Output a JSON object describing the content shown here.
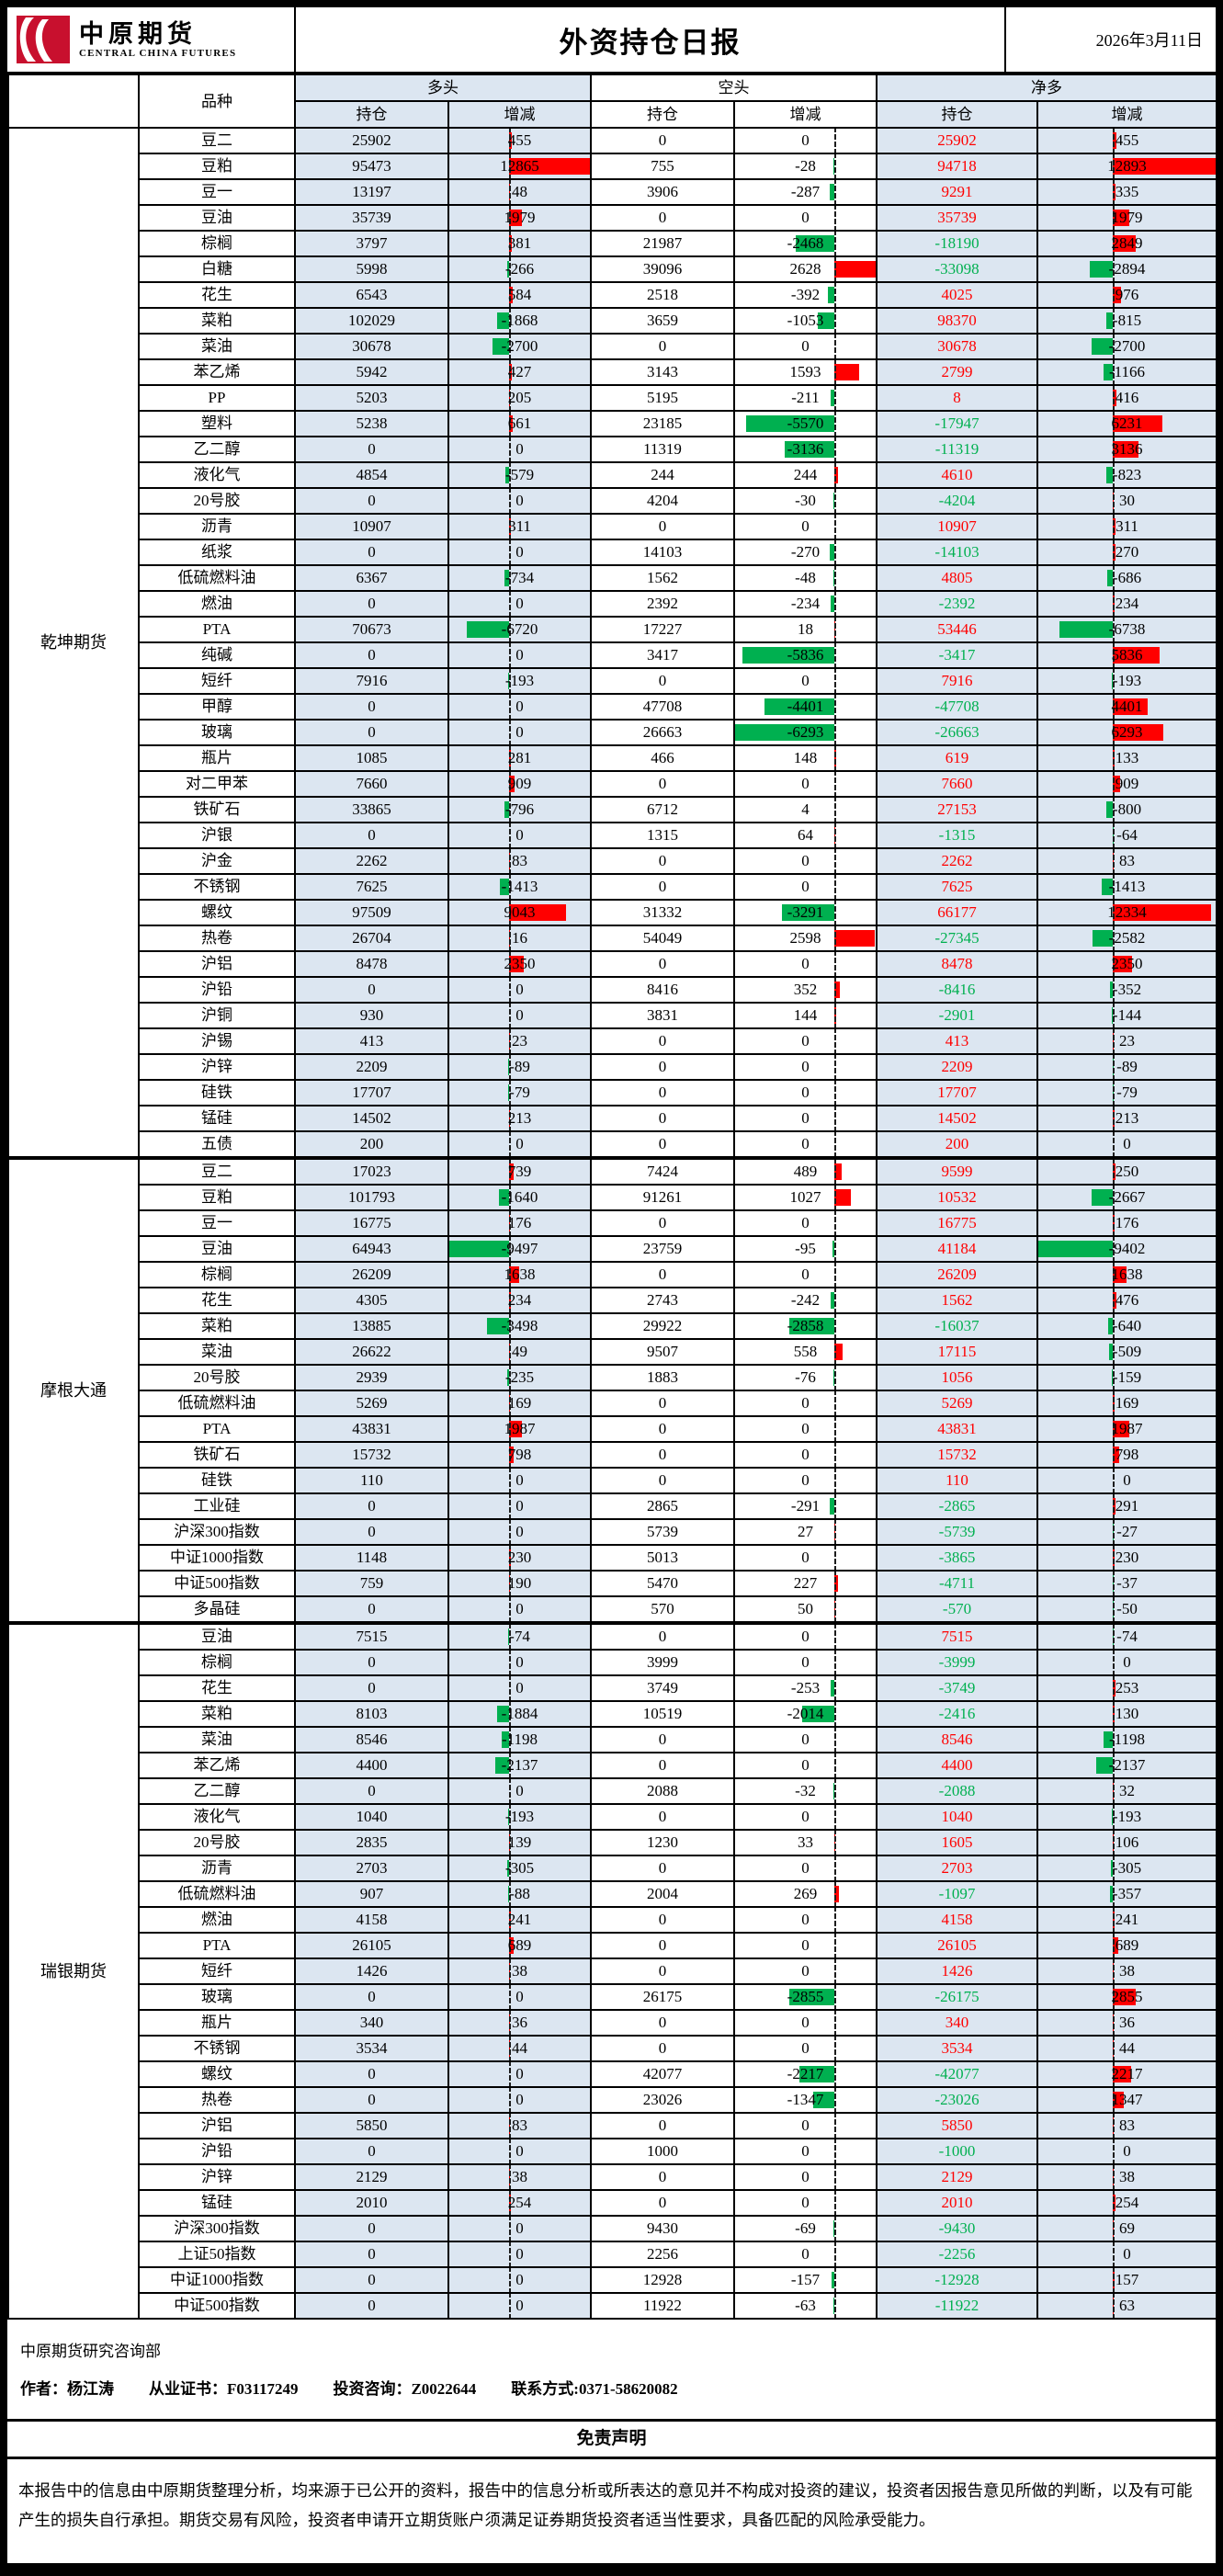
{
  "header": {
    "logo": {
      "brand_cn": "中原期货",
      "brand_en": "CENTRAL CHINA FUTURES"
    },
    "title": "外资持仓日报",
    "date": "2026年3月11日"
  },
  "colors": {
    "band_blue": "#dce6f1",
    "positive_red": "#ff0000",
    "negative_green": "#00b050",
    "logo_red": "#c8102e"
  },
  "table": {
    "col_headers": {
      "variety": "品种",
      "long": "多头",
      "short": "空头",
      "net": "净多",
      "position": "持仓",
      "change": "增减"
    },
    "value_columns": [
      "long_position",
      "long_change",
      "short_position",
      "short_change",
      "net_position",
      "net_change"
    ],
    "sections": [
      {
        "broker": "乾坤期货",
        "rows": [
          {
            "name": "豆二",
            "values": [
              25902,
              455,
              0,
              0,
              25902,
              455
            ]
          },
          {
            "name": "豆粕",
            "values": [
              95473,
              12865,
              755,
              -28,
              94718,
              12893
            ]
          },
          {
            "name": "豆一",
            "values": [
              13197,
              48,
              3906,
              -287,
              9291,
              335
            ]
          },
          {
            "name": "豆油",
            "values": [
              35739,
              1979,
              0,
              0,
              35739,
              1979
            ]
          },
          {
            "name": "棕榈",
            "values": [
              3797,
              381,
              21987,
              -2468,
              -18190,
              2849
            ]
          },
          {
            "name": "白糖",
            "values": [
              5998,
              -266,
              39096,
              2628,
              -33098,
              -2894
            ]
          },
          {
            "name": "花生",
            "values": [
              6543,
              584,
              2518,
              -392,
              4025,
              976
            ]
          },
          {
            "name": "菜粕",
            "values": [
              102029,
              -1868,
              3659,
              -1053,
              98370,
              -815
            ]
          },
          {
            "name": "菜油",
            "values": [
              30678,
              -2700,
              0,
              0,
              30678,
              -2700
            ]
          },
          {
            "name": "苯乙烯",
            "values": [
              5942,
              427,
              3143,
              1593,
              2799,
              -1166
            ]
          },
          {
            "name": "PP",
            "values": [
              5203,
              205,
              5195,
              -211,
              8,
              416
            ]
          },
          {
            "name": "塑料",
            "values": [
              5238,
              661,
              23185,
              -5570,
              -17947,
              6231
            ]
          },
          {
            "name": "乙二醇",
            "values": [
              0,
              0,
              11319,
              -3136,
              -11319,
              3136
            ]
          },
          {
            "name": "液化气",
            "values": [
              4854,
              -579,
              244,
              244,
              4610,
              -823
            ]
          },
          {
            "name": "20号胶",
            "values": [
              0,
              0,
              4204,
              -30,
              -4204,
              30
            ]
          },
          {
            "name": "沥青",
            "values": [
              10907,
              311,
              0,
              0,
              10907,
              311
            ]
          },
          {
            "name": "纸浆",
            "values": [
              0,
              0,
              14103,
              -270,
              -14103,
              270
            ]
          },
          {
            "name": "低硫燃料油",
            "values": [
              6367,
              -734,
              1562,
              -48,
              4805,
              -686
            ]
          },
          {
            "name": "燃油",
            "values": [
              0,
              0,
              2392,
              -234,
              -2392,
              234
            ]
          },
          {
            "name": "PTA",
            "values": [
              70673,
              -6720,
              17227,
              18,
              53446,
              -6738
            ]
          },
          {
            "name": "纯碱",
            "values": [
              0,
              0,
              3417,
              -5836,
              -3417,
              5836
            ]
          },
          {
            "name": "短纤",
            "values": [
              7916,
              -193,
              0,
              0,
              7916,
              -193
            ]
          },
          {
            "name": "甲醇",
            "values": [
              0,
              0,
              47708,
              -4401,
              -47708,
              4401
            ]
          },
          {
            "name": "玻璃",
            "values": [
              0,
              0,
              26663,
              -6293,
              -26663,
              6293
            ]
          },
          {
            "name": "瓶片",
            "values": [
              1085,
              281,
              466,
              148,
              619,
              133
            ]
          },
          {
            "name": "对二甲苯",
            "values": [
              7660,
              909,
              0,
              0,
              7660,
              909
            ]
          },
          {
            "name": "铁矿石",
            "values": [
              33865,
              -796,
              6712,
              4,
              27153,
              -800
            ]
          },
          {
            "name": "沪银",
            "values": [
              0,
              0,
              1315,
              64,
              -1315,
              -64
            ]
          },
          {
            "name": "沪金",
            "values": [
              2262,
              83,
              0,
              0,
              2262,
              83
            ]
          },
          {
            "name": "不锈钢",
            "values": [
              7625,
              -1413,
              0,
              0,
              7625,
              -1413
            ]
          },
          {
            "name": "螺纹",
            "values": [
              97509,
              9043,
              31332,
              -3291,
              66177,
              12334
            ]
          },
          {
            "name": "热卷",
            "values": [
              26704,
              16,
              54049,
              2598,
              -27345,
              -2582
            ]
          },
          {
            "name": "沪铝",
            "values": [
              8478,
              2350,
              0,
              0,
              8478,
              2350
            ]
          },
          {
            "name": "沪铅",
            "values": [
              0,
              0,
              8416,
              352,
              -8416,
              -352
            ]
          },
          {
            "name": "沪铜",
            "values": [
              930,
              0,
              3831,
              144,
              -2901,
              -144
            ]
          },
          {
            "name": "沪锡",
            "values": [
              413,
              23,
              0,
              0,
              413,
              23
            ]
          },
          {
            "name": "沪锌",
            "values": [
              2209,
              -89,
              0,
              0,
              2209,
              -89
            ]
          },
          {
            "name": "硅铁",
            "values": [
              17707,
              -79,
              0,
              0,
              17707,
              -79
            ]
          },
          {
            "name": "锰硅",
            "values": [
              14502,
              213,
              0,
              0,
              14502,
              213
            ]
          },
          {
            "name": "五债",
            "values": [
              200,
              0,
              0,
              0,
              200,
              0
            ]
          }
        ]
      },
      {
        "broker": "摩根大通",
        "rows": [
          {
            "name": "豆二",
            "values": [
              17023,
              739,
              7424,
              489,
              9599,
              250
            ]
          },
          {
            "name": "豆粕",
            "values": [
              101793,
              -1640,
              91261,
              1027,
              10532,
              -2667
            ]
          },
          {
            "name": "豆一",
            "values": [
              16775,
              176,
              0,
              0,
              16775,
              176
            ]
          },
          {
            "name": "豆油",
            "values": [
              64943,
              -9497,
              23759,
              -95,
              41184,
              -9402
            ]
          },
          {
            "name": "棕榈",
            "values": [
              26209,
              1638,
              0,
              0,
              26209,
              1638
            ]
          },
          {
            "name": "花生",
            "values": [
              4305,
              234,
              2743,
              -242,
              1562,
              476
            ]
          },
          {
            "name": "菜粕",
            "values": [
              13885,
              -3498,
              29922,
              -2858,
              -16037,
              -640
            ]
          },
          {
            "name": "菜油",
            "values": [
              26622,
              49,
              9507,
              558,
              17115,
              -509
            ]
          },
          {
            "name": "20号胶",
            "values": [
              2939,
              -235,
              1883,
              -76,
              1056,
              -159
            ]
          },
          {
            "name": "低硫燃料油",
            "values": [
              5269,
              169,
              0,
              0,
              5269,
              169
            ]
          },
          {
            "name": "PTA",
            "values": [
              43831,
              1987,
              0,
              0,
              43831,
              1987
            ]
          },
          {
            "name": "铁矿石",
            "values": [
              15732,
              798,
              0,
              0,
              15732,
              798
            ]
          },
          {
            "name": "硅铁",
            "values": [
              110,
              0,
              0,
              0,
              110,
              0
            ]
          },
          {
            "name": "工业硅",
            "values": [
              0,
              0,
              2865,
              -291,
              -2865,
              291
            ]
          },
          {
            "name": "沪深300指数",
            "values": [
              0,
              0,
              5739,
              27,
              -5739,
              -27
            ]
          },
          {
            "name": "中证1000指数",
            "values": [
              1148,
              230,
              5013,
              0,
              -3865,
              230
            ]
          },
          {
            "name": "中证500指数",
            "values": [
              759,
              190,
              5470,
              227,
              -4711,
              -37
            ]
          },
          {
            "name": "多晶硅",
            "values": [
              0,
              0,
              570,
              50,
              -570,
              -50
            ]
          }
        ]
      },
      {
        "broker": "瑞银期货",
        "rows": [
          {
            "name": "豆油",
            "values": [
              7515,
              -74,
              0,
              0,
              7515,
              -74
            ]
          },
          {
            "name": "棕榈",
            "values": [
              0,
              0,
              3999,
              0,
              -3999,
              0
            ]
          },
          {
            "name": "花生",
            "values": [
              0,
              0,
              3749,
              -253,
              -3749,
              253
            ]
          },
          {
            "name": "菜粕",
            "values": [
              8103,
              -1884,
              10519,
              -2014,
              -2416,
              130
            ]
          },
          {
            "name": "菜油",
            "values": [
              8546,
              -1198,
              0,
              0,
              8546,
              -1198
            ]
          },
          {
            "name": "苯乙烯",
            "values": [
              4400,
              -2137,
              0,
              0,
              4400,
              -2137
            ]
          },
          {
            "name": "乙二醇",
            "values": [
              0,
              0,
              2088,
              -32,
              -2088,
              32
            ]
          },
          {
            "name": "液化气",
            "values": [
              1040,
              -193,
              0,
              0,
              1040,
              -193
            ]
          },
          {
            "name": "20号胶",
            "values": [
              2835,
              139,
              1230,
              33,
              1605,
              106
            ]
          },
          {
            "name": "沥青",
            "values": [
              2703,
              -305,
              0,
              0,
              2703,
              -305
            ]
          },
          {
            "name": "低硫燃料油",
            "values": [
              907,
              -88,
              2004,
              269,
              -1097,
              -357
            ]
          },
          {
            "name": "燃油",
            "values": [
              4158,
              241,
              0,
              0,
              4158,
              241
            ]
          },
          {
            "name": "PTA",
            "values": [
              26105,
              689,
              0,
              0,
              26105,
              689
            ]
          },
          {
            "name": "短纤",
            "values": [
              1426,
              38,
              0,
              0,
              1426,
              38
            ]
          },
          {
            "name": "玻璃",
            "values": [
              0,
              0,
              26175,
              -2855,
              -26175,
              2855
            ]
          },
          {
            "name": "瓶片",
            "values": [
              340,
              36,
              0,
              0,
              340,
              36
            ]
          },
          {
            "name": "不锈钢",
            "values": [
              3534,
              44,
              0,
              0,
              3534,
              44
            ]
          },
          {
            "name": "螺纹",
            "values": [
              0,
              0,
              42077,
              -2217,
              -42077,
              2217
            ]
          },
          {
            "name": "热卷",
            "values": [
              0,
              0,
              23026,
              -1347,
              -23026,
              1347
            ]
          },
          {
            "name": "沪铝",
            "values": [
              5850,
              83,
              0,
              0,
              5850,
              83
            ]
          },
          {
            "name": "沪铅",
            "values": [
              0,
              0,
              1000,
              0,
              -1000,
              0
            ]
          },
          {
            "name": "沪锌",
            "values": [
              2129,
              38,
              0,
              0,
              2129,
              38
            ]
          },
          {
            "name": "锰硅",
            "values": [
              2010,
              254,
              0,
              0,
              2010,
              254
            ]
          },
          {
            "name": "沪深300指数",
            "values": [
              0,
              0,
              9430,
              -69,
              -9430,
              69
            ]
          },
          {
            "name": "上证50指数",
            "values": [
              0,
              0,
              2256,
              0,
              -2256,
              0
            ]
          },
          {
            "name": "中证1000指数",
            "values": [
              0,
              0,
              12928,
              -157,
              -12928,
              157
            ]
          },
          {
            "name": "中证500指数",
            "values": [
              0,
              0,
              11922,
              -63,
              -11922,
              63
            ]
          }
        ]
      }
    ]
  },
  "footer": {
    "department": "中原期货研究咨询部",
    "author_segments": [
      "作者：杨江涛",
      "从业证书：F03117249",
      "投资咨询：Z0022644",
      "联系方式:0371-58620082"
    ],
    "disclaimer_title": "免责声明",
    "disclaimer": "本报告中的信息由中原期货整理分析，均来源于已公开的资料，报告中的信息分析或所表达的意见并不构成对投资的建议，投资者因报告意见所做的判断，以及有可能产生的损失自行承担。期货交易有风险，投资者申请开立期货账户须满足证券期货投资者适当性要求，具备匹配的风险承受能力。"
  }
}
